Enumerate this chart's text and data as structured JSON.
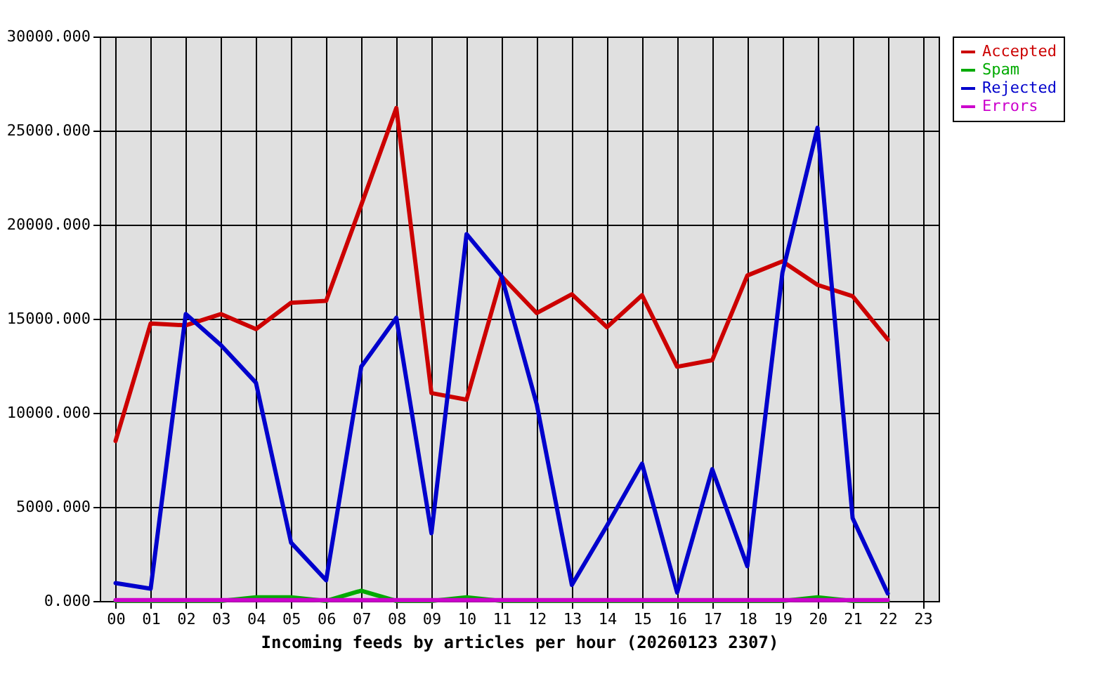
{
  "chart_data": {
    "type": "line",
    "xlabel": "Incoming feeds by articles per hour (20260123 2307)",
    "categories": [
      "00",
      "01",
      "02",
      "03",
      "04",
      "05",
      "06",
      "07",
      "08",
      "09",
      "10",
      "11",
      "12",
      "13",
      "14",
      "15",
      "16",
      "17",
      "18",
      "19",
      "20",
      "21",
      "22",
      "23"
    ],
    "series": [
      {
        "name": "Accepted",
        "color": "#cc0000",
        "values": [
          8500,
          14750,
          14650,
          15250,
          14450,
          15850,
          15950,
          21050,
          26200,
          11050,
          10700,
          17250,
          15300,
          16300,
          14550,
          16250,
          12450,
          12800,
          17300,
          18050,
          16800,
          16200,
          13900,
          null
        ]
      },
      {
        "name": "Spam",
        "color": "#00aa00",
        "values": [
          0,
          0,
          0,
          0,
          200,
          200,
          0,
          550,
          0,
          0,
          200,
          0,
          0,
          0,
          0,
          0,
          0,
          0,
          0,
          0,
          200,
          0,
          0,
          null
        ]
      },
      {
        "name": "Rejected",
        "color": "#0000cc",
        "values": [
          950,
          650,
          15250,
          13600,
          11600,
          3100,
          1100,
          12450,
          15050,
          3600,
          19500,
          17250,
          10450,
          850,
          4000,
          7300,
          450,
          7000,
          1850,
          17450,
          25150,
          4400,
          400,
          null
        ]
      },
      {
        "name": "Errors",
        "color": "#cc00cc",
        "values": [
          50,
          50,
          50,
          50,
          50,
          50,
          50,
          50,
          50,
          50,
          50,
          50,
          50,
          50,
          50,
          50,
          50,
          50,
          50,
          50,
          50,
          50,
          50,
          null
        ]
      }
    ],
    "ylim": [
      0,
      30000
    ],
    "yticks": [
      {
        "value": 0,
        "label": "0.000"
      },
      {
        "value": 5000,
        "label": "5000.000"
      },
      {
        "value": 10000,
        "label": "10000.000"
      },
      {
        "value": 15000,
        "label": "15000.000"
      },
      {
        "value": 20000,
        "label": "20000.000"
      },
      {
        "value": 25000,
        "label": "25000.000"
      },
      {
        "value": 30000,
        "label": "30000.000"
      }
    ],
    "grid": true,
    "legend": "top right",
    "line_style": "solid"
  }
}
